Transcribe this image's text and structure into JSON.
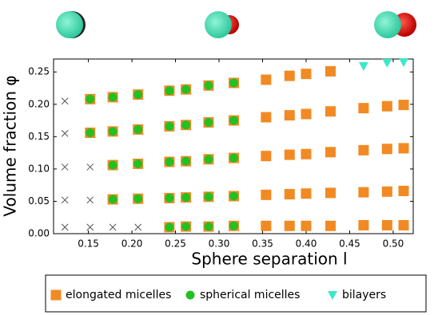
{
  "chart_data": {
    "type": "scatter",
    "xlabel": "Sphere separation l",
    "ylabel": "Volume fraction φ",
    "xlim": [
      0.11,
      0.523
    ],
    "ylim": [
      0,
      0.27
    ],
    "xticks": [
      0.15,
      {
        "value": 0.2,
        "label": "0.20"
      },
      0.25,
      {
        "value": 0.3,
        "label": "0.30"
      },
      0.35,
      {
        "value": 0.4,
        "label": "0.40"
      },
      0.45,
      {
        "value": 0.5,
        "label": "0.50"
      }
    ],
    "yticks": [
      {
        "value": 0,
        "label": "0.00"
      },
      0.05,
      {
        "value": 0.1,
        "label": "0.10"
      },
      0.15,
      {
        "value": 0.2,
        "label": "0.20"
      },
      0.25
    ],
    "series": [
      {
        "name": "elongated micelles",
        "color": "#f28a24",
        "marker": "s",
        "x": [
          0.152,
          0.178,
          0.207,
          0.243,
          0.262,
          0.288,
          0.317,
          0.354,
          0.381,
          0.4,
          0.428,
          0.152,
          0.178,
          0.207,
          0.243,
          0.262,
          0.288,
          0.317,
          0.354,
          0.381,
          0.4,
          0.428,
          0.466,
          0.493,
          0.512,
          0.178,
          0.207,
          0.243,
          0.262,
          0.288,
          0.317,
          0.354,
          0.381,
          0.4,
          0.428,
          0.466,
          0.493,
          0.512,
          0.178,
          0.207,
          0.243,
          0.262,
          0.288,
          0.317,
          0.354,
          0.381,
          0.4,
          0.428,
          0.466,
          0.493,
          0.512,
          0.243,
          0.262,
          0.288,
          0.317,
          0.354,
          0.381,
          0.4,
          0.428,
          0.466,
          0.493,
          0.512
        ],
        "y": [
          0.208,
          0.211,
          0.215,
          0.221,
          0.223,
          0.229,
          0.233,
          0.238,
          0.244,
          0.247,
          0.251,
          0.156,
          0.158,
          0.161,
          0.166,
          0.168,
          0.172,
          0.175,
          0.18,
          0.183,
          0.185,
          0.189,
          0.194,
          0.197,
          0.199,
          0.106,
          0.108,
          0.111,
          0.112,
          0.115,
          0.117,
          0.12,
          0.122,
          0.123,
          0.126,
          0.129,
          0.131,
          0.132,
          0.053,
          0.054,
          0.055,
          0.056,
          0.057,
          0.058,
          0.06,
          0.061,
          0.062,
          0.063,
          0.064,
          0.065,
          0.066,
          0.01,
          0.011,
          0.011,
          0.012,
          0.012,
          0.012,
          0.012,
          0.012,
          0.013,
          0.013,
          0.013
        ]
      },
      {
        "name": "spherical micelles",
        "color": "#22c022",
        "marker": "o",
        "x": [
          0.152,
          0.178,
          0.207,
          0.243,
          0.262,
          0.288,
          0.317,
          0.152,
          0.178,
          0.207,
          0.243,
          0.262,
          0.288,
          0.317,
          0.178,
          0.207,
          0.243,
          0.262,
          0.288,
          0.317,
          0.178,
          0.207,
          0.243,
          0.262,
          0.288,
          0.317,
          0.243,
          0.262,
          0.288,
          0.317
        ],
        "y": [
          0.208,
          0.211,
          0.215,
          0.221,
          0.223,
          0.229,
          0.233,
          0.156,
          0.158,
          0.161,
          0.166,
          0.168,
          0.172,
          0.175,
          0.106,
          0.108,
          0.111,
          0.112,
          0.115,
          0.117,
          0.053,
          0.054,
          0.055,
          0.056,
          0.057,
          0.058,
          0.01,
          0.011,
          0.011,
          0.012
        ]
      },
      {
        "name": "bilayers",
        "color": "#3de8c8",
        "marker": "v",
        "x": [
          0.466,
          0.493,
          0.512
        ],
        "y": [
          0.259,
          0.264,
          0.265
        ]
      },
      {
        "color": "#555555",
        "marker": "x",
        "x": [
          0.123,
          0.123,
          0.123,
          0.152,
          0.123,
          0.152,
          0.123,
          0.152,
          0.178,
          0.207
        ],
        "y": [
          0.205,
          0.155,
          0.103,
          0.103,
          0.052,
          0.052,
          0.01,
          0.01,
          0.01,
          0.01
        ]
      }
    ]
  }
}
